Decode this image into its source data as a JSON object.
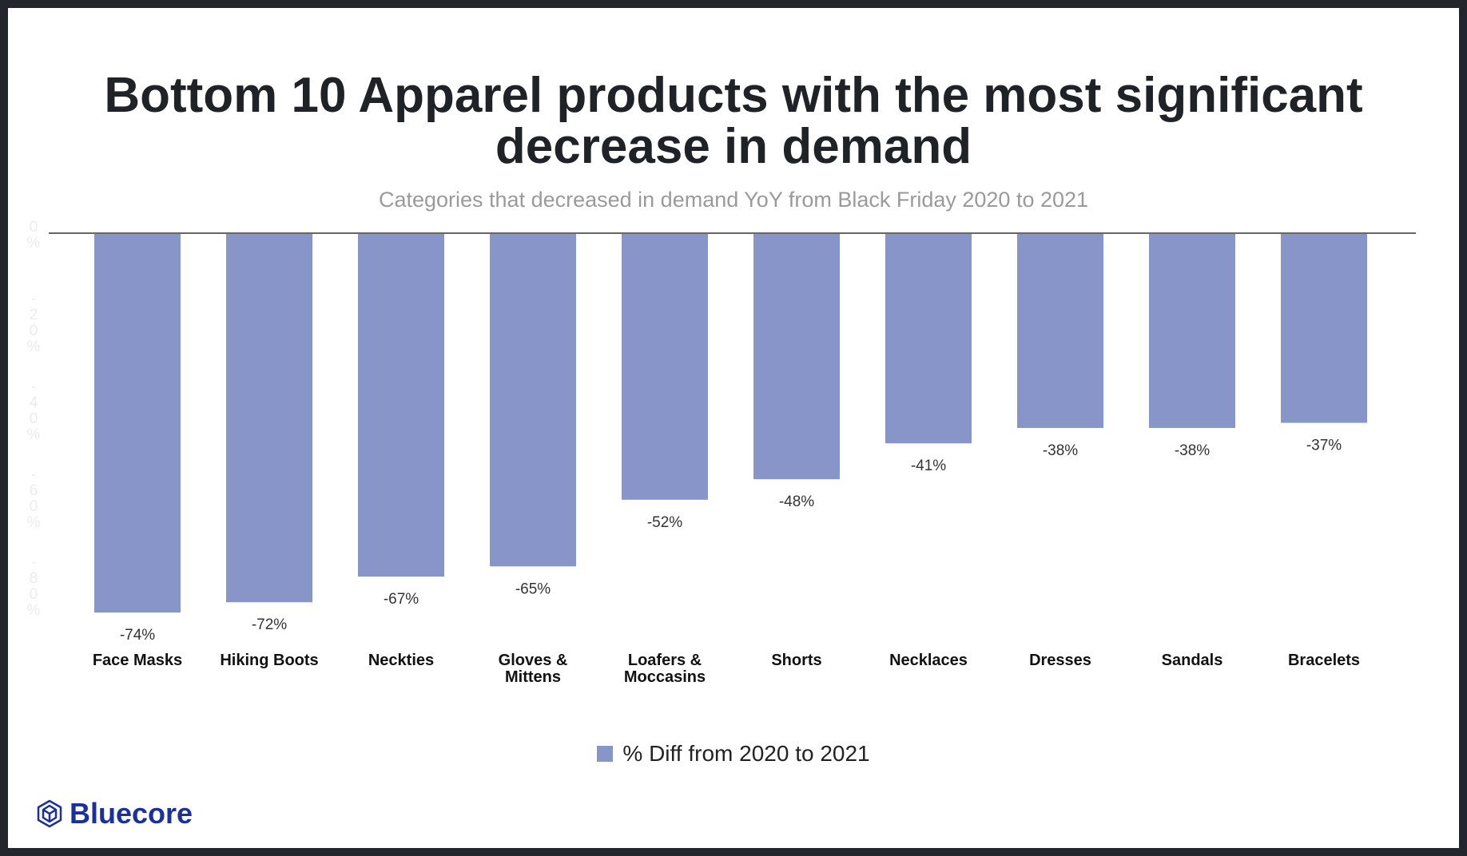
{
  "chart_data": {
    "type": "bar",
    "title": "Bottom 10 Apparel products with the most significant decrease in demand",
    "subtitle": "Categories that decreased in demand YoY from Black Friday 2020 to 2021",
    "categories": [
      "Face Masks",
      "Hiking Boots",
      "Neckties",
      "Gloves & Mittens",
      "Loafers & Moccasins",
      "Shorts",
      "Necklaces",
      "Dresses",
      "Sandals",
      "Bracelets"
    ],
    "series": [
      {
        "name": "% Diff from 2020 to 2021",
        "values": [
          -74,
          -72,
          -67,
          -65,
          -52,
          -48,
          -41,
          -38,
          -38,
          -37
        ]
      }
    ],
    "data_labels": [
      "-74%",
      "-72%",
      "-67%",
      "-65%",
      "-52%",
      "-48%",
      "-41%",
      "-38%",
      "-38%",
      "-37%"
    ],
    "y_ticks": [
      "0%",
      "-20%",
      "-40%",
      "-60%",
      "-80%"
    ],
    "ylim": [
      -80,
      0
    ],
    "grid": false,
    "legend": "bottom",
    "bar_color": "#8795c8"
  },
  "logo": {
    "text": "Bluecore",
    "color": "#1a2fa0"
  }
}
